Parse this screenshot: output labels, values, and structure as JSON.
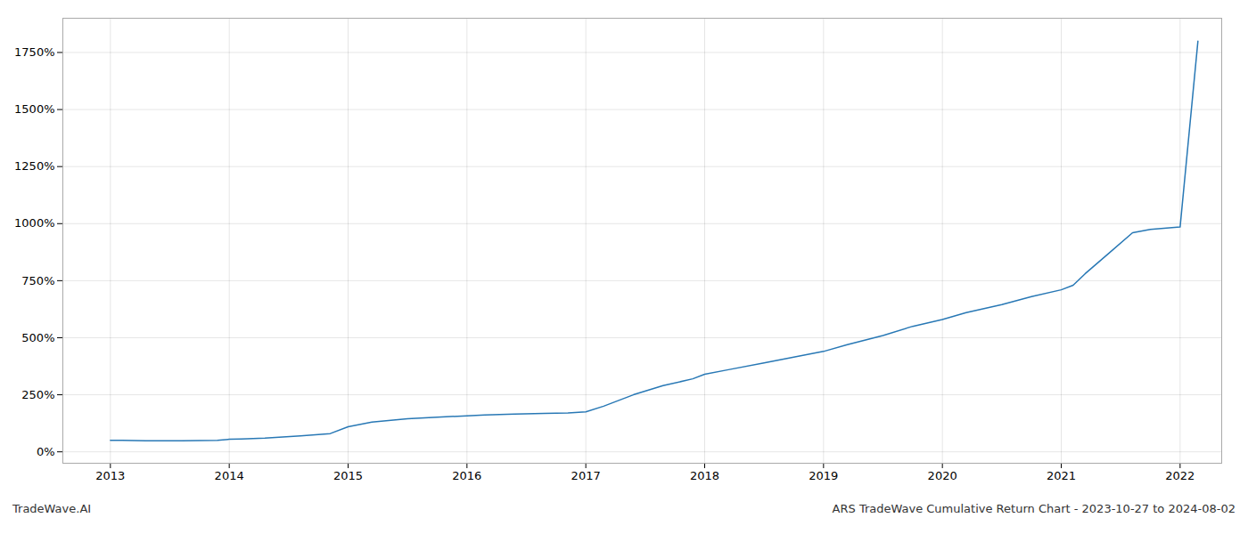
{
  "chart_data": {
    "type": "line",
    "title": "ARS TradeWave Cumulative Return Chart - 2023-10-27 to 2024-08-02",
    "annotations": [
      "TradeWave.AI"
    ],
    "x": [
      2013.0,
      2013.1,
      2013.3,
      2013.6,
      2013.9,
      2014.0,
      2014.1,
      2014.3,
      2014.6,
      2014.85,
      2015.0,
      2015.2,
      2015.5,
      2015.75,
      2016.0,
      2016.15,
      2016.4,
      2016.65,
      2016.85,
      2017.0,
      2017.15,
      2017.4,
      2017.65,
      2017.9,
      2018.0,
      2018.2,
      2018.5,
      2018.75,
      2019.0,
      2019.2,
      2019.5,
      2019.75,
      2020.0,
      2020.2,
      2020.5,
      2020.75,
      2021.0,
      2021.1,
      2021.2,
      2021.4,
      2021.6,
      2021.75,
      2022.0,
      2022.15
    ],
    "values": [
      50,
      50,
      48,
      48,
      50,
      55,
      56,
      60,
      70,
      80,
      110,
      130,
      145,
      152,
      158,
      162,
      165,
      168,
      170,
      175,
      200,
      250,
      290,
      320,
      340,
      360,
      390,
      415,
      440,
      470,
      510,
      550,
      580,
      610,
      645,
      680,
      710,
      730,
      780,
      870,
      960,
      975,
      985,
      1800
    ],
    "color": "#2878b5",
    "xlim": [
      2012.6,
      2022.35
    ],
    "xticks": [
      2013,
      2014,
      2015,
      2016,
      2017,
      2018,
      2019,
      2020,
      2021,
      2022
    ],
    "ylim": [
      -50,
      1900
    ],
    "yticks": [
      {
        "value": 0,
        "label": "0%"
      },
      {
        "value": 250,
        "label": "250%"
      },
      {
        "value": 500,
        "label": "500%"
      },
      {
        "value": 750,
        "label": "750%"
      },
      {
        "value": 1000,
        "label": "1000%"
      },
      {
        "value": 1250,
        "label": "1250%"
      },
      {
        "value": 1500,
        "label": "1500%"
      },
      {
        "value": 1750,
        "label": "1750%"
      }
    ],
    "grid": true
  }
}
